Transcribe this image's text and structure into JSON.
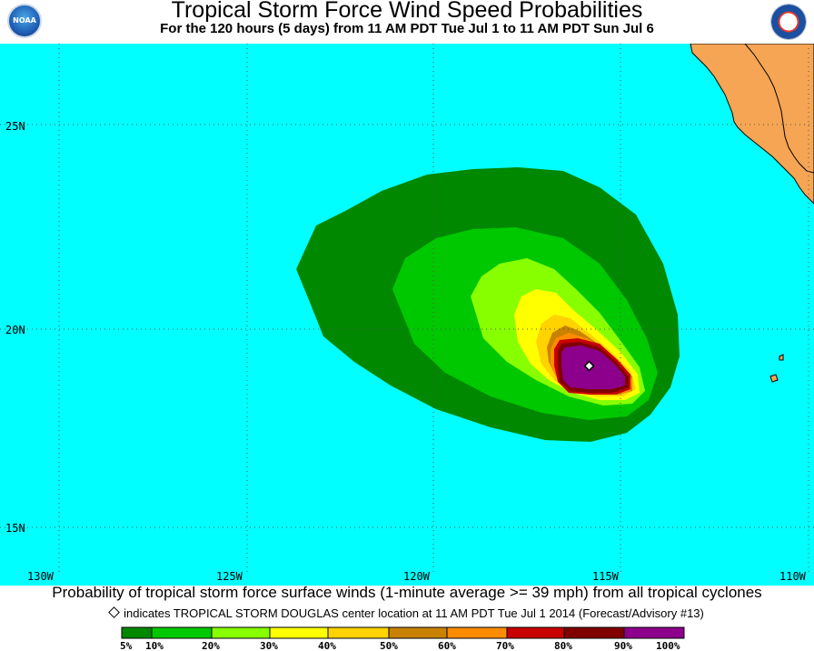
{
  "header": {
    "title": "Tropical Storm Force Wind Speed Probabilities",
    "subtitle": "For the 120 hours (5 days) from 11 AM PDT Tue Jul 1 to 11 AM PDT Sun Jul 6",
    "left_logo": "NOAA",
    "right_logo": "National Weather Service"
  },
  "map": {
    "background_color": "#00ffff",
    "land_color": "#f5a553",
    "lat_labels": [
      "25N",
      "20N",
      "15N"
    ],
    "lon_labels": [
      "130W",
      "125W",
      "120W",
      "115W",
      "110W"
    ],
    "contour_colors": [
      "#008800",
      "#00c800",
      "#88ff00",
      "#ffff00",
      "#ffd200",
      "#c88200",
      "#ff8c00",
      "#c80000",
      "#800000",
      "#8c008c"
    ]
  },
  "footer": {
    "caption": "Probability of tropical storm force surface winds (1-minute average >= 39 mph) from all tropical cyclones",
    "indicator": "indicates TROPICAL STORM DOUGLAS center location at 11 AM PDT Tue Jul 1 2014 (Forecast/Advisory #13)"
  },
  "legend": {
    "labels": [
      "5%",
      "10%",
      "20%",
      "30%",
      "40%",
      "50%",
      "60%",
      "70%",
      "80%",
      "90%",
      "100%"
    ],
    "colors": [
      "#008800",
      "#00c800",
      "#88ff00",
      "#ffff00",
      "#ffd200",
      "#c88200",
      "#ff8c00",
      "#c80000",
      "#800000",
      "#8c008c"
    ]
  }
}
